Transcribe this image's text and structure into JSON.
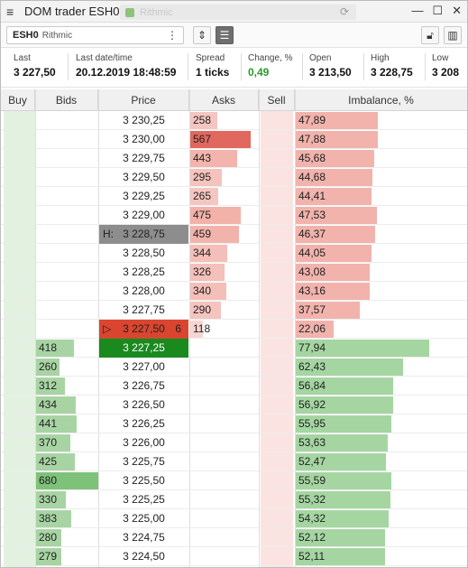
{
  "window": {
    "title": "DOM trader ESH0",
    "faded_tab_text": "Rithmic"
  },
  "toolbar": {
    "symbol": "ESH0",
    "connection": "Rithmic",
    "more_glyph": "⋮"
  },
  "info": [
    {
      "label": "Last",
      "value": "3 227,50",
      "color": "#111111"
    },
    {
      "label": "Last date/time",
      "value": "20.12.2019 18:48:59",
      "color": "#111111"
    },
    {
      "label": "Spread",
      "value": "1 ticks",
      "color": "#111111"
    },
    {
      "label": "Change, %",
      "value": "0,49",
      "color": "#2a9a2a"
    },
    {
      "label": "Open",
      "value": "3 213,50",
      "color": "#111111"
    },
    {
      "label": "High",
      "value": "3 228,75",
      "color": "#111111"
    },
    {
      "label": "Low",
      "value": "3 208",
      "color": "#111111"
    }
  ],
  "columns": [
    "Buy",
    "Bids",
    "Price",
    "Asks",
    "Sell",
    "Imbalance, %"
  ],
  "colors": {
    "ask_bar": "#f0a8a0",
    "ask_bar_max": "#e0685e",
    "bid_bar": "#a8d4a4",
    "bid_bar_max": "#7ec27a",
    "imb_red": "#f2b3ad",
    "imb_green": "#a5d6a2",
    "buy_col": "#e3f1e1",
    "sell_col": "#fbe3e1"
  },
  "rows": [
    {
      "price": "3 230,25",
      "ask": "258",
      "bid": "",
      "imb": "47,89",
      "imb_pct": 47.89,
      "side": "ask"
    },
    {
      "price": "3 230,00",
      "ask": "567",
      "bid": "",
      "imb": "47,88",
      "imb_pct": 47.88,
      "side": "ask"
    },
    {
      "price": "3 229,75",
      "ask": "443",
      "bid": "",
      "imb": "45,68",
      "imb_pct": 45.68,
      "side": "ask"
    },
    {
      "price": "3 229,50",
      "ask": "295",
      "bid": "",
      "imb": "44,68",
      "imb_pct": 44.68,
      "side": "ask"
    },
    {
      "price": "3 229,25",
      "ask": "265",
      "bid": "",
      "imb": "44,41",
      "imb_pct": 44.41,
      "side": "ask"
    },
    {
      "price": "3 229,00",
      "ask": "475",
      "bid": "",
      "imb": "47,53",
      "imb_pct": 47.53,
      "side": "ask"
    },
    {
      "price": "3 228,75",
      "prefix": "H:",
      "ask": "459",
      "bid": "",
      "imb": "46,37",
      "imb_pct": 46.37,
      "side": "ask",
      "mark": "high"
    },
    {
      "price": "3 228,50",
      "ask": "344",
      "bid": "",
      "imb": "44,05",
      "imb_pct": 44.05,
      "side": "ask"
    },
    {
      "price": "3 228,25",
      "ask": "326",
      "bid": "",
      "imb": "43,08",
      "imb_pct": 43.08,
      "side": "ask"
    },
    {
      "price": "3 228,00",
      "ask": "340",
      "bid": "",
      "imb": "43,16",
      "imb_pct": 43.16,
      "side": "ask"
    },
    {
      "price": "3 227,75",
      "ask": "290",
      "bid": "",
      "imb": "37,57",
      "imb_pct": 37.57,
      "side": "ask"
    },
    {
      "price": "3 227,50",
      "prefix": "▷",
      "suffix": "6",
      "ask": "118",
      "bid": "",
      "imb": "22,06",
      "imb_pct": 22.06,
      "side": "ask",
      "mark": "last"
    },
    {
      "price": "3 227,25",
      "ask": "",
      "bid": "418",
      "imb": "77,94",
      "imb_pct": 77.94,
      "side": "bid",
      "mark": "best"
    },
    {
      "price": "3 227,00",
      "ask": "",
      "bid": "260",
      "imb": "62,43",
      "imb_pct": 62.43,
      "side": "bid"
    },
    {
      "price": "3 226,75",
      "ask": "",
      "bid": "312",
      "imb": "56,84",
      "imb_pct": 56.84,
      "side": "bid"
    },
    {
      "price": "3 226,50",
      "ask": "",
      "bid": "434",
      "imb": "56,92",
      "imb_pct": 56.92,
      "side": "bid"
    },
    {
      "price": "3 226,25",
      "ask": "",
      "bid": "441",
      "imb": "55,95",
      "imb_pct": 55.95,
      "side": "bid"
    },
    {
      "price": "3 226,00",
      "ask": "",
      "bid": "370",
      "imb": "53,63",
      "imb_pct": 53.63,
      "side": "bid"
    },
    {
      "price": "3 225,75",
      "ask": "",
      "bid": "425",
      "imb": "52,47",
      "imb_pct": 52.47,
      "side": "bid"
    },
    {
      "price": "3 225,50",
      "ask": "",
      "bid": "680",
      "imb": "55,59",
      "imb_pct": 55.59,
      "side": "bid"
    },
    {
      "price": "3 225,25",
      "ask": "",
      "bid": "330",
      "imb": "55,32",
      "imb_pct": 55.32,
      "side": "bid"
    },
    {
      "price": "3 225,00",
      "ask": "",
      "bid": "383",
      "imb": "54,32",
      "imb_pct": 54.32,
      "side": "bid"
    },
    {
      "price": "3 224,75",
      "ask": "",
      "bid": "280",
      "imb": "52,12",
      "imb_pct": 52.12,
      "side": "bid"
    },
    {
      "price": "3 224,50",
      "ask": "",
      "bid": "279",
      "imb": "52,11",
      "imb_pct": 52.11,
      "side": "bid"
    }
  ]
}
